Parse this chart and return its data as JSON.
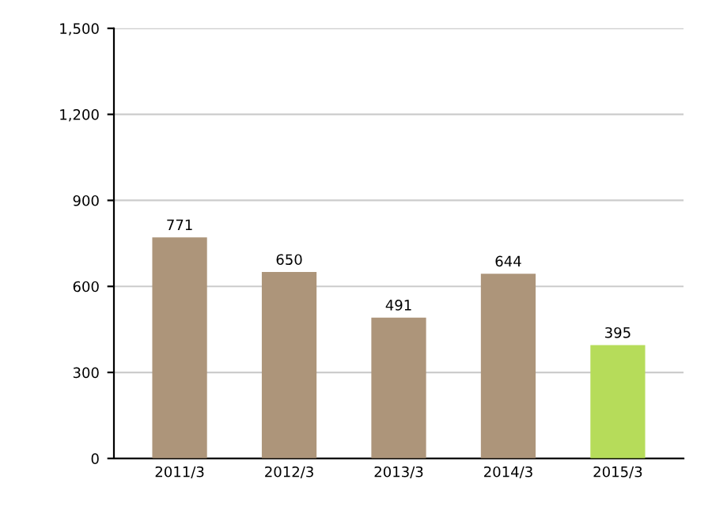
{
  "chart_data": {
    "type": "bar",
    "categories": [
      "2011/3",
      "2012/3",
      "2013/3",
      "2014/3",
      "2015/3"
    ],
    "values": [
      771,
      650,
      491,
      644,
      395
    ],
    "colors": [
      "#ad957a",
      "#ad957a",
      "#ad957a",
      "#ad957a",
      "#b6dc5a"
    ],
    "ylim": [
      0,
      1500
    ],
    "yticks": [
      0,
      300,
      600,
      900,
      {
        "value": 1200,
        "label": "1,200"
      },
      {
        "value": 1500,
        "label": "1,500"
      }
    ],
    "grid": "y",
    "data_labels": true
  }
}
